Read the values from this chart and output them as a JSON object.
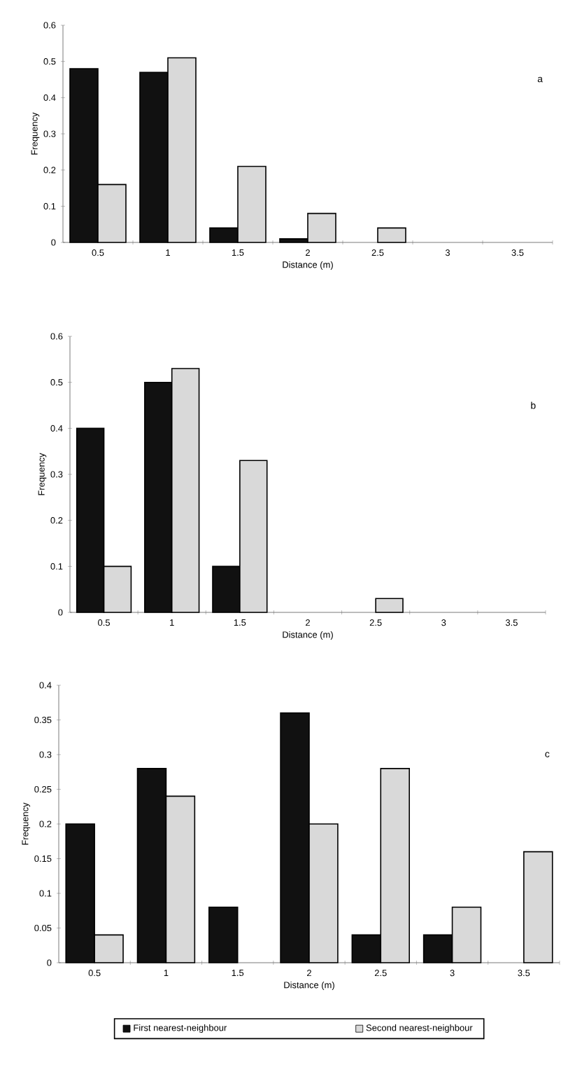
{
  "chart_data": [
    {
      "type": "bar",
      "xlabel": "Distance (m)",
      "ylabel": "Frequency",
      "annotations": [
        "a"
      ],
      "categories": [
        "0.5",
        "1",
        "1.5",
        "2",
        "2.5",
        "3",
        "3.5"
      ],
      "ylim": [
        0,
        0.6
      ],
      "yticks": [
        0,
        0.1,
        0.2,
        0.3,
        0.4,
        0.5,
        0.6
      ],
      "legend": false,
      "series": [
        {
          "color": "#111111",
          "values": [
            0.48,
            0.47,
            0.04,
            0.01,
            0,
            0,
            0
          ]
        },
        {
          "color": "#d9d9d9",
          "values": [
            0.16,
            0.51,
            0.21,
            0.08,
            0.04,
            0,
            0
          ]
        }
      ]
    },
    {
      "type": "bar",
      "xlabel": "Distance (m)",
      "ylabel": "Frequency",
      "annotations": [
        "b"
      ],
      "categories": [
        "0.5",
        "1",
        "1.5",
        "2",
        "2.5",
        "3",
        "3.5"
      ],
      "ylim": [
        0,
        0.6
      ],
      "yticks": [
        0,
        0.1,
        0.2,
        0.3,
        0.4,
        0.5,
        0.6
      ],
      "legend": false,
      "series": [
        {
          "color": "#111111",
          "values": [
            0.4,
            0.5,
            0.1,
            0,
            0,
            0,
            0
          ]
        },
        {
          "color": "#d9d9d9",
          "values": [
            0.1,
            0.53,
            0.33,
            0,
            0.03,
            0,
            0
          ]
        }
      ]
    },
    {
      "type": "bar",
      "xlabel": "Distance (m)",
      "ylabel": "Frequency",
      "annotations": [
        "c"
      ],
      "categories": [
        "0.5",
        "1",
        "1.5",
        "2",
        "2.5",
        "3",
        "3.5"
      ],
      "ylim": [
        0,
        0.4
      ],
      "yticks": [
        0,
        0.05,
        0.1,
        0.15,
        0.2,
        0.25,
        0.3,
        0.35,
        0.4
      ],
      "legend": "bottom",
      "series": [
        {
          "name": "First nearest-neighbour",
          "color": "#111111",
          "values": [
            0.2,
            0.28,
            0.08,
            0.36,
            0.04,
            0.04,
            0
          ]
        },
        {
          "name": "Second nearest-neighbour",
          "color": "#d9d9d9",
          "values": [
            0.04,
            0.24,
            0,
            0.2,
            0.28,
            0.08,
            0.16
          ]
        }
      ]
    }
  ]
}
